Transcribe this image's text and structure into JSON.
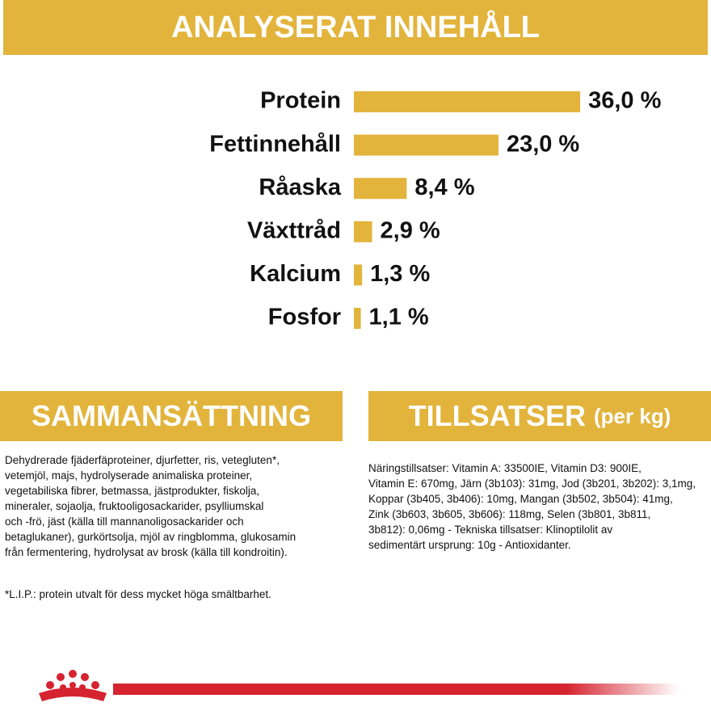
{
  "header": {
    "title": "ANALYSERAT INNEHÅLL"
  },
  "chart_data": {
    "type": "bar",
    "orientation": "horizontal",
    "categories": [
      "Protein",
      "Fettinnehåll",
      "Råaska",
      "Växttråd",
      "Kalcium",
      "Fosfor"
    ],
    "values": [
      36.0,
      23.0,
      8.4,
      2.9,
      1.3,
      1.1
    ],
    "value_labels": [
      "36,0 %",
      "23,0 %",
      "8,4 %",
      "2,9 %",
      "1,3 %",
      "1,1 %"
    ],
    "color": "#e3b43c"
  },
  "composition": {
    "title": "SAMMANSÄTTNING",
    "lines": [
      "Dehydrerade fjäderfäproteiner, djurfetter, ris, vetegluten*,",
      "vetemjöl, majs, hydrolyserade animaliska proteiner,",
      "vegetabiliska fibrer, betmassa, jästprodukter, fiskolja,",
      "mineraler, sojaolja, fruktooligosackarider, psylliumskal",
      "och -frö, jäst (källa till mannanoligosackarider och",
      "betaglukaner), gurkörtsolja, mjöl av ringblomma, glukosamin",
      "från fermentering, hydrolysat av brosk (källa till kondroitin)."
    ],
    "footnote": "*L.I.P.: protein utvalt för dess mycket höga smältbarhet."
  },
  "additives": {
    "title": "TILLSATSER",
    "title_suffix": "(per kg)",
    "lines": [
      "Näringstillsatser: Vitamin A: 33500IE, Vitamin D3: 900IE,",
      "Vitamin E: 670mg, Järn (3b103): 31mg, Jod (3b201, 3b202): 3,1mg,",
      "Koppar (3b405, 3b406): 10mg, Mangan (3b502, 3b504): 41mg,",
      "Zink (3b603, 3b605, 3b606): 118mg, Selen (3b801, 3b811,",
      "3b812): 0,06mg - Tekniska tillsatser: Klinoptilolit av",
      "sedimentärt ursprung: 10g - Antioxidanter."
    ]
  }
}
